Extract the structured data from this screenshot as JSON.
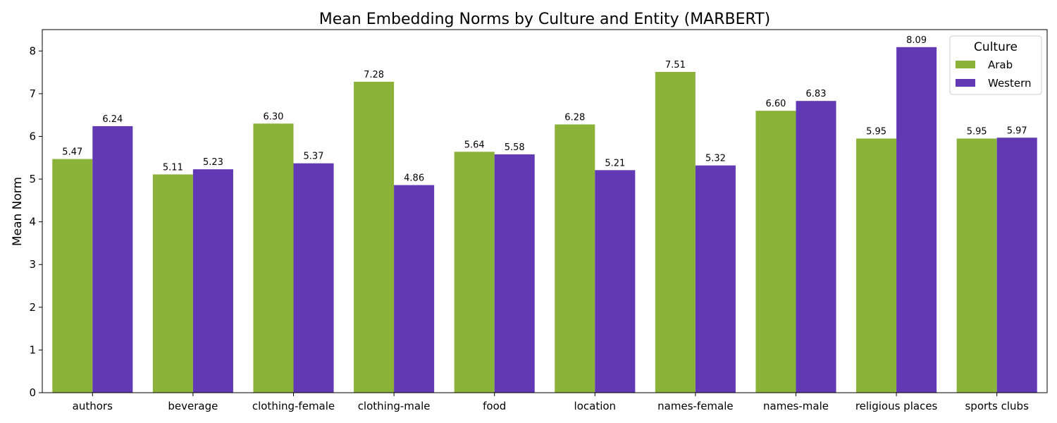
{
  "chart_data": {
    "type": "bar",
    "title": "Mean Embedding Norms by Culture and Entity (MARBERT)",
    "xlabel": "",
    "ylabel": "Mean Norm",
    "ylim": [
      0,
      8.5
    ],
    "yticks": [
      0,
      1,
      2,
      3,
      4,
      5,
      6,
      7,
      8
    ],
    "grid": false,
    "legend_title": "Culture",
    "legend_position": "top-right",
    "categories": [
      "authors",
      "beverage",
      "clothing-female",
      "clothing-male",
      "food",
      "location",
      "names-female",
      "names-male",
      "religious places",
      "sports clubs"
    ],
    "series": [
      {
        "name": "Arab",
        "color": "#8bb33a",
        "values": [
          5.47,
          5.11,
          6.3,
          7.28,
          5.64,
          6.28,
          7.51,
          6.6,
          5.95,
          5.95
        ]
      },
      {
        "name": "Western",
        "color": "#6239b4",
        "values": [
          6.24,
          5.23,
          5.37,
          4.86,
          5.58,
          5.21,
          5.32,
          6.83,
          8.09,
          5.97
        ]
      }
    ]
  }
}
